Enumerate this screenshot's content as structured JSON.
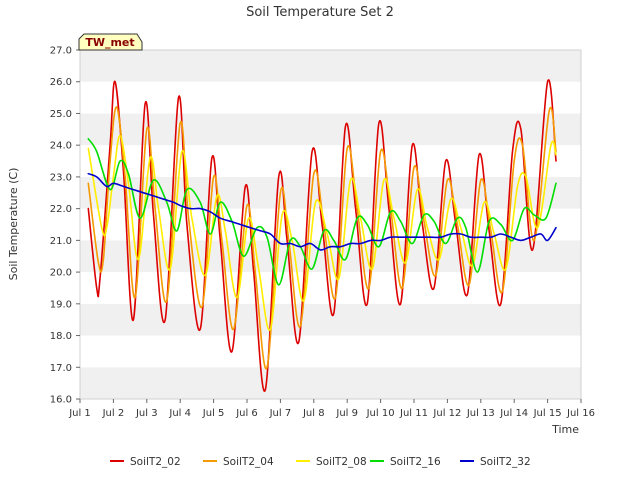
{
  "chart_data": {
    "type": "line",
    "title": "Soil Temperature Set 2",
    "xlabel": "Time",
    "ylabel": "Soil Temperature (C)",
    "badge": "TW_met",
    "xlim": [
      1,
      16
    ],
    "ylim": [
      16.0,
      27.0
    ],
    "xticks": [
      1,
      2,
      3,
      4,
      5,
      6,
      7,
      8,
      9,
      10,
      11,
      12,
      13,
      14,
      15,
      16
    ],
    "xtick_labels": [
      "Jul 1",
      "Jul 2",
      "Jul 3",
      "Jul 4",
      "Jul 5",
      "Jul 6",
      "Jul 7",
      "Jul 8",
      "Jul 9",
      "Jul 10",
      "Jul 11",
      "Jul 12",
      "Jul 13",
      "Jul 14",
      "Jul 15",
      "Jul 16"
    ],
    "yticks": [
      16.0,
      17.0,
      18.0,
      19.0,
      20.0,
      21.0,
      22.0,
      23.0,
      24.0,
      25.0,
      26.0,
      27.0
    ],
    "ytick_labels": [
      "16.0",
      "17.0",
      "18.0",
      "19.0",
      "20.0",
      "21.0",
      "22.0",
      "23.0",
      "24.0",
      "25.0",
      "26.0",
      "27.0"
    ],
    "grid": "horizontal bands",
    "legend_position": "bottom",
    "series": [
      {
        "name": "SoilT2_02",
        "color": "#dd0000",
        "x": [
          1.25,
          1.5,
          1.6,
          1.9,
          2.05,
          2.3,
          2.6,
          2.95,
          3.2,
          3.55,
          3.95,
          4.2,
          4.6,
          4.95,
          5.2,
          5.55,
          5.95,
          6.2,
          6.55,
          6.95,
          7.2,
          7.55,
          7.95,
          8.25,
          8.6,
          8.95,
          9.25,
          9.6,
          9.95,
          10.25,
          10.6,
          10.95,
          11.25,
          11.6,
          11.95,
          12.25,
          12.6,
          12.95,
          13.25,
          13.6,
          13.95,
          14.2,
          14.55,
          15.0,
          15.25
        ],
        "y": [
          22.0,
          19.5,
          19.8,
          24.0,
          26.0,
          23.2,
          18.5,
          25.3,
          21.8,
          18.5,
          25.5,
          21.5,
          18.2,
          23.6,
          21.0,
          17.5,
          22.7,
          20.0,
          16.3,
          23.0,
          21.0,
          17.8,
          23.8,
          21.5,
          18.7,
          24.6,
          22.0,
          19.0,
          24.7,
          22.0,
          19.0,
          24.0,
          21.5,
          19.5,
          23.5,
          21.5,
          19.3,
          23.7,
          21.3,
          19.0,
          23.8,
          24.5,
          20.7,
          26.0,
          23.5
        ]
      },
      {
        "name": "SoilT2_04",
        "color": "#f59a00",
        "x": [
          1.25,
          1.55,
          1.7,
          1.9,
          2.1,
          2.35,
          2.65,
          3.0,
          3.25,
          3.6,
          4.0,
          4.25,
          4.65,
          5.0,
          5.25,
          5.6,
          6.0,
          6.25,
          6.6,
          7.0,
          7.25,
          7.6,
          8.0,
          8.3,
          8.65,
          9.0,
          9.3,
          9.65,
          10.0,
          10.3,
          10.65,
          11.0,
          11.3,
          11.65,
          12.0,
          12.3,
          12.65,
          13.0,
          13.3,
          13.65,
          14.0,
          14.25,
          14.6,
          15.05,
          15.25
        ],
        "y": [
          22.8,
          20.3,
          20.4,
          23.5,
          25.2,
          23.0,
          19.2,
          24.5,
          22.0,
          19.1,
          24.7,
          21.7,
          18.9,
          23.0,
          21.0,
          18.2,
          22.1,
          20.0,
          17.0,
          22.5,
          21.0,
          18.3,
          23.1,
          21.5,
          19.2,
          23.9,
          22.0,
          19.5,
          23.8,
          22.0,
          19.5,
          23.3,
          21.6,
          19.9,
          22.9,
          21.5,
          19.6,
          22.9,
          21.3,
          19.4,
          23.5,
          24.0,
          21.0,
          25.1,
          23.8
        ]
      },
      {
        "name": "SoilT2_08",
        "color": "#ffee00",
        "x": [
          1.25,
          1.65,
          1.8,
          2.0,
          2.2,
          2.45,
          2.75,
          3.1,
          3.35,
          3.7,
          4.05,
          4.35,
          4.75,
          5.1,
          5.35,
          5.7,
          6.05,
          6.35,
          6.7,
          7.05,
          7.35,
          7.7,
          8.05,
          8.4,
          8.75,
          9.1,
          9.4,
          9.75,
          10.1,
          10.4,
          10.75,
          11.1,
          11.4,
          11.75,
          12.1,
          12.4,
          12.75,
          13.1,
          13.4,
          13.75,
          14.1,
          14.35,
          14.7,
          15.1,
          15.25
        ],
        "y": [
          23.9,
          21.4,
          21.4,
          23.0,
          24.3,
          22.8,
          20.4,
          23.6,
          22.0,
          20.1,
          23.8,
          21.7,
          19.9,
          22.4,
          21.3,
          19.2,
          21.7,
          20.1,
          18.2,
          21.8,
          21.0,
          19.1,
          22.2,
          21.2,
          19.8,
          22.9,
          21.7,
          20.1,
          22.9,
          21.7,
          20.3,
          22.6,
          21.4,
          20.4,
          22.3,
          21.4,
          20.2,
          22.2,
          21.2,
          20.1,
          22.7,
          23.0,
          21.4,
          24.0,
          23.7
        ]
      },
      {
        "name": "SoilT2_16",
        "color": "#00dd00",
        "x": [
          1.25,
          1.5,
          1.9,
          2.2,
          2.45,
          2.8,
          3.2,
          3.6,
          3.9,
          4.2,
          4.6,
          4.9,
          5.2,
          5.55,
          5.9,
          6.3,
          6.6,
          6.95,
          7.3,
          7.6,
          7.95,
          8.3,
          8.6,
          8.95,
          9.3,
          9.6,
          9.95,
          10.3,
          10.6,
          10.95,
          11.3,
          11.6,
          11.95,
          12.3,
          12.55,
          12.9,
          13.25,
          13.6,
          13.95,
          14.3,
          14.6,
          14.95,
          15.25
        ],
        "y": [
          24.2,
          23.8,
          22.6,
          23.5,
          23.1,
          21.7,
          22.9,
          22.2,
          21.3,
          22.6,
          22.2,
          21.2,
          22.2,
          21.6,
          20.5,
          21.4,
          21.1,
          19.6,
          21.0,
          20.8,
          20.1,
          21.3,
          21.0,
          20.4,
          21.7,
          21.5,
          20.8,
          21.9,
          21.6,
          20.9,
          21.8,
          21.6,
          20.9,
          21.7,
          21.4,
          20.0,
          21.6,
          21.5,
          21.0,
          22.0,
          21.8,
          21.7,
          22.8
        ]
      },
      {
        "name": "SoilT2_32",
        "color": "#0000cc",
        "x": [
          1.25,
          1.5,
          1.8,
          2.0,
          2.3,
          2.6,
          2.9,
          3.2,
          3.5,
          3.8,
          4.0,
          4.3,
          4.6,
          4.9,
          5.2,
          5.5,
          5.8,
          6.1,
          6.4,
          6.7,
          7.0,
          7.3,
          7.6,
          7.9,
          8.2,
          8.5,
          8.8,
          9.1,
          9.4,
          9.7,
          10.0,
          10.3,
          10.6,
          10.9,
          11.2,
          11.5,
          11.8,
          12.1,
          12.4,
          12.7,
          13.0,
          13.3,
          13.6,
          13.9,
          14.2,
          14.5,
          14.8,
          15.0,
          15.25
        ],
        "y": [
          23.1,
          23.0,
          22.7,
          22.8,
          22.7,
          22.6,
          22.5,
          22.4,
          22.3,
          22.2,
          22.1,
          22.0,
          22.0,
          21.9,
          21.7,
          21.6,
          21.5,
          21.4,
          21.3,
          21.2,
          20.9,
          20.9,
          20.8,
          20.9,
          20.7,
          20.8,
          20.8,
          20.9,
          20.9,
          21.0,
          21.0,
          21.1,
          21.1,
          21.1,
          21.1,
          21.1,
          21.1,
          21.2,
          21.2,
          21.1,
          21.1,
          21.1,
          21.2,
          21.1,
          21.0,
          21.1,
          21.2,
          21.0,
          21.4
        ]
      }
    ]
  }
}
